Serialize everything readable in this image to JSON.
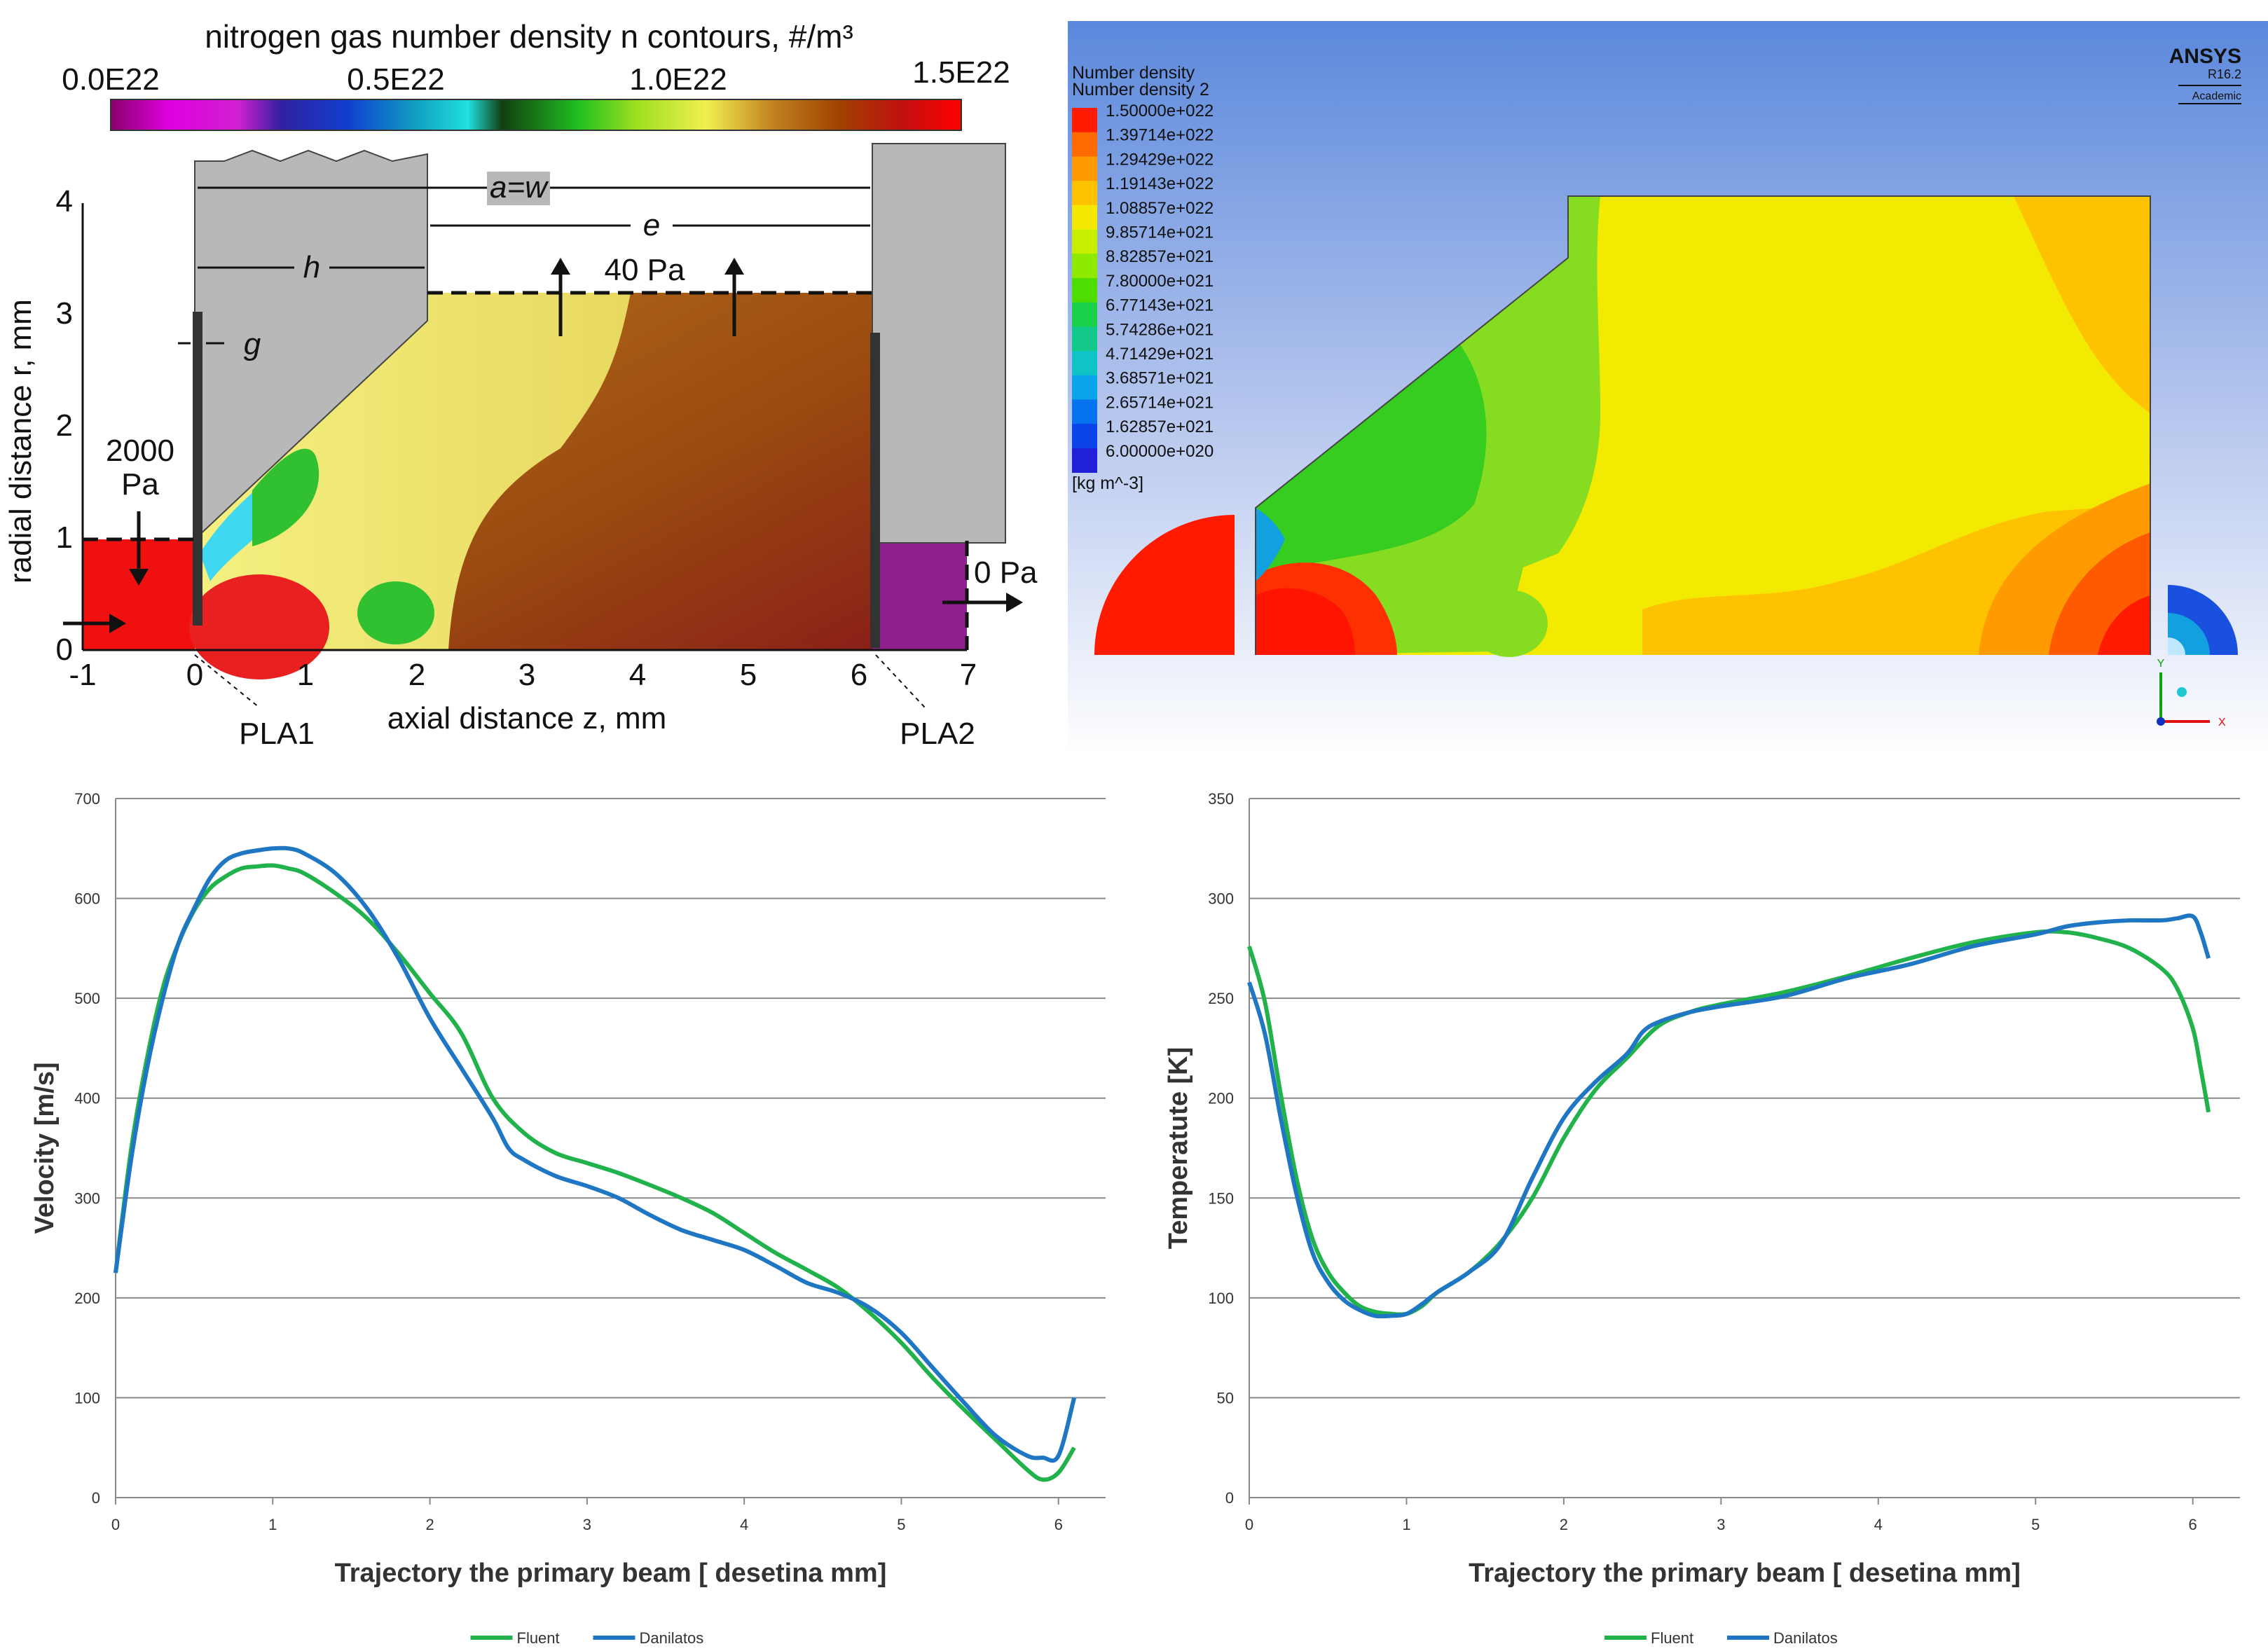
{
  "top_left": {
    "colorbar_title": "nitrogen gas number density n contours, #/m³",
    "colorbar_ticks": [
      "0.0E22",
      "0.5E22",
      "1.0E22",
      "1.5E22"
    ],
    "y_axis_label": "radial distance r, mm",
    "x_axis_label": "axial distance z, mm",
    "y_ticks": [
      "0",
      "1",
      "2",
      "3",
      "4"
    ],
    "x_ticks": [
      "-1",
      "0",
      "1",
      "2",
      "3",
      "4",
      "5",
      "6",
      "7"
    ],
    "dim_aw": "a=w",
    "dim_e": "e",
    "dim_h": "h",
    "dim_g": "g",
    "pressure_40": "40 Pa",
    "pressure_2000_a": "2000",
    "pressure_2000_b": "Pa",
    "pressure_0": "0 Pa",
    "pla1": "PLA1",
    "pla2": "PLA2"
  },
  "top_right": {
    "legend_title1": "Number density",
    "legend_title2": "Number density 2",
    "legend_unit": "[kg m^-3]",
    "legend_values": [
      "1.50000e+022",
      "1.39714e+022",
      "1.29429e+022",
      "1.19143e+022",
      "1.08857e+022",
      "9.85714e+021",
      "8.82857e+021",
      "7.80000e+021",
      "6.77143e+021",
      "5.74286e+021",
      "4.71429e+021",
      "3.68571e+021",
      "2.65714e+021",
      "1.62857e+021",
      "6.00000e+020"
    ],
    "legend_colors": [
      "#ff1a00",
      "#ff6a00",
      "#ff9a00",
      "#ffc200",
      "#f5e800",
      "#c8ef00",
      "#8eea00",
      "#4fdc00",
      "#1cd14a",
      "#12c98a",
      "#10c3c4",
      "#0aa4e8",
      "#0672f0",
      "#0a44e6",
      "#2020d8"
    ],
    "brand": "ANSYS",
    "version": "R16.2",
    "edition": "Academic",
    "axis_y": "Y",
    "axis_x": "X"
  },
  "chart_data": [
    {
      "type": "line",
      "xlabel": "Trajectory the primary beam [ desetina mm]",
      "ylabel": "Velocity [m/s]",
      "xlim": [
        0,
        6.3
      ],
      "ylim": [
        0,
        700
      ],
      "x_ticks": [
        0,
        1,
        2,
        3,
        4,
        5,
        6
      ],
      "y_ticks": [
        0,
        100,
        200,
        300,
        400,
        500,
        600,
        700
      ],
      "grid": true,
      "legend_position": "bottom",
      "series": [
        {
          "name": "Fluent",
          "color": "#22b24c",
          "x": [
            0,
            0.1,
            0.2,
            0.3,
            0.4,
            0.5,
            0.6,
            0.7,
            0.8,
            0.9,
            1.0,
            1.1,
            1.2,
            1.4,
            1.6,
            1.8,
            2.0,
            2.2,
            2.4,
            2.6,
            2.8,
            3.0,
            3.2,
            3.4,
            3.6,
            3.8,
            4.0,
            4.2,
            4.4,
            4.6,
            4.8,
            5.0,
            5.2,
            5.4,
            5.6,
            5.8,
            5.9,
            6.0,
            6.1
          ],
          "y": [
            225,
            350,
            440,
            510,
            555,
            588,
            610,
            622,
            630,
            632,
            633,
            630,
            625,
            605,
            580,
            545,
            505,
            465,
            400,
            365,
            345,
            335,
            325,
            313,
            300,
            285,
            265,
            245,
            228,
            210,
            185,
            155,
            120,
            88,
            58,
            28,
            18,
            25,
            50
          ]
        },
        {
          "name": "Danilatos",
          "color": "#1f77c4",
          "x": [
            0,
            0.1,
            0.2,
            0.3,
            0.4,
            0.5,
            0.6,
            0.7,
            0.8,
            0.9,
            1.0,
            1.1,
            1.2,
            1.4,
            1.6,
            1.8,
            2.0,
            2.2,
            2.4,
            2.5,
            2.6,
            2.8,
            3.0,
            3.2,
            3.4,
            3.6,
            3.8,
            4.0,
            4.2,
            4.4,
            4.6,
            4.8,
            5.0,
            5.2,
            5.4,
            5.6,
            5.8,
            5.9,
            6.0,
            6.1
          ],
          "y": [
            225,
            340,
            430,
            500,
            555,
            590,
            620,
            638,
            645,
            648,
            650,
            650,
            645,
            625,
            590,
            540,
            480,
            430,
            380,
            350,
            338,
            322,
            312,
            300,
            283,
            268,
            258,
            248,
            232,
            215,
            205,
            190,
            165,
            130,
            95,
            62,
            42,
            40,
            42,
            100
          ]
        }
      ]
    },
    {
      "type": "line",
      "xlabel": "Trajectory the primary beam [ desetina mm]",
      "ylabel": "Temperatute [K]",
      "xlim": [
        0,
        6.3
      ],
      "ylim": [
        0,
        350
      ],
      "x_ticks": [
        0,
        1,
        2,
        3,
        4,
        5,
        6
      ],
      "y_ticks": [
        0,
        50,
        100,
        150,
        200,
        250,
        300,
        350
      ],
      "grid": true,
      "legend_position": "bottom",
      "series": [
        {
          "name": "Fluent",
          "color": "#22b24c",
          "x": [
            0,
            0.1,
            0.2,
            0.3,
            0.4,
            0.5,
            0.6,
            0.7,
            0.8,
            0.9,
            1.0,
            1.1,
            1.2,
            1.4,
            1.6,
            1.8,
            2.0,
            2.2,
            2.4,
            2.6,
            2.8,
            3.0,
            3.4,
            3.8,
            4.2,
            4.6,
            5.0,
            5.2,
            5.4,
            5.6,
            5.8,
            5.9,
            6.0,
            6.05,
            6.1
          ],
          "y": [
            276,
            248,
            202,
            160,
            130,
            113,
            103,
            96,
            93,
            92,
            92,
            96,
            103,
            113,
            128,
            150,
            180,
            204,
            220,
            236,
            243,
            247,
            253,
            261,
            270,
            278,
            283,
            283,
            280,
            275,
            265,
            255,
            235,
            215,
            193
          ]
        },
        {
          "name": "Danilatos",
          "color": "#1f77c4",
          "x": [
            0,
            0.1,
            0.2,
            0.3,
            0.4,
            0.5,
            0.6,
            0.7,
            0.8,
            0.9,
            1.0,
            1.1,
            1.2,
            1.4,
            1.6,
            1.8,
            2.0,
            2.2,
            2.4,
            2.5,
            2.6,
            2.8,
            3.0,
            3.4,
            3.8,
            4.2,
            4.6,
            5.0,
            5.2,
            5.4,
            5.6,
            5.8,
            5.9,
            6.0,
            6.05,
            6.1
          ],
          "y": [
            258,
            232,
            190,
            152,
            123,
            108,
            99,
            94,
            91,
            91,
            92,
            97,
            103,
            113,
            127,
            160,
            190,
            208,
            222,
            233,
            238,
            243,
            246,
            251,
            260,
            267,
            276,
            282,
            286,
            288,
            289,
            289,
            290,
            291,
            283,
            270
          ]
        }
      ]
    }
  ]
}
